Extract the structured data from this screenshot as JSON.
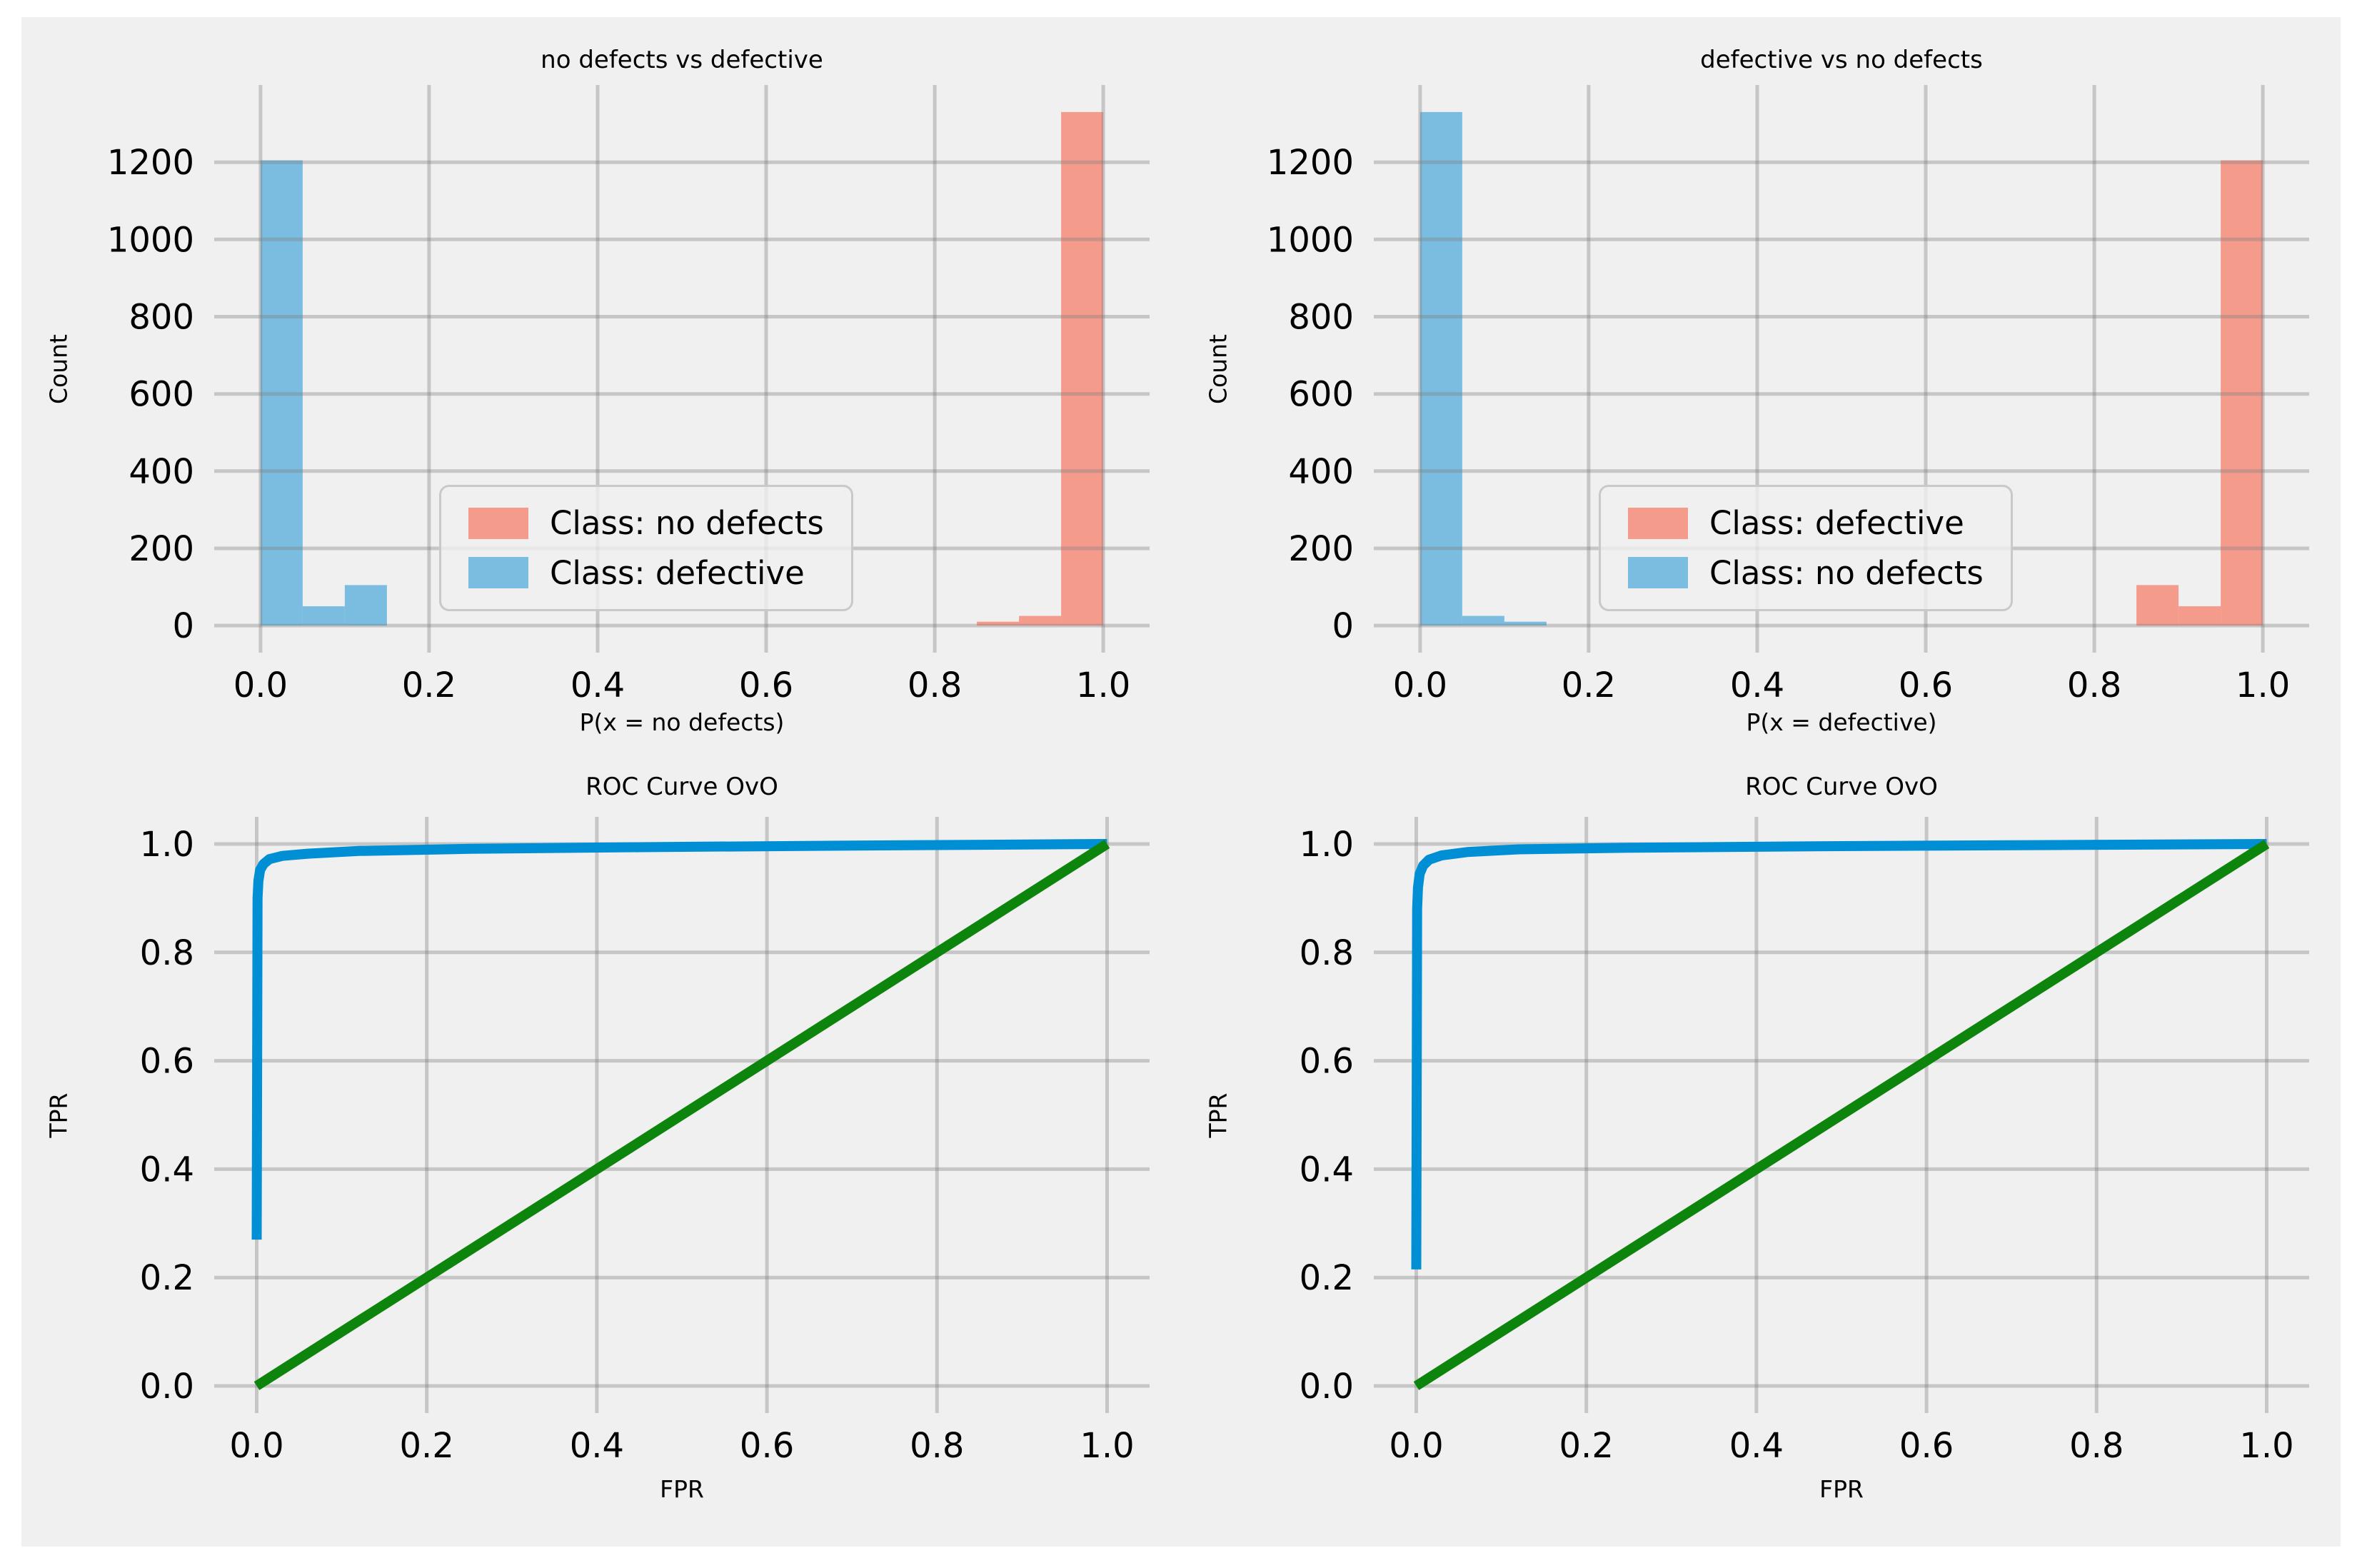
{
  "figure": {
    "background": "#ffffff",
    "panel_background": "#f0f0f0",
    "grid_color": "#cbcbcb",
    "text_color": "#000000",
    "histogram_salmon": "#f59b8c",
    "histogram_blue": "#7abde0",
    "roc_blue": "#008fd5",
    "roc_green": "#0d850d"
  },
  "chart_data": [
    {
      "type": "bar",
      "title": "no defects vs defective",
      "xlabel": "P(x = no defects)",
      "ylabel": "Count",
      "xlim": [
        -0.055,
        1.055
      ],
      "ylim": [
        -70,
        1400
      ],
      "grid": true,
      "legend_position": "lower center-left inside",
      "xticks": {
        "values": [
          0,
          0.2,
          0.4,
          0.6,
          0.8,
          1.0
        ],
        "labels": [
          "0.0",
          "0.2",
          "0.4",
          "0.6",
          "0.8",
          "1.0"
        ]
      },
      "yticks": {
        "values": [
          0,
          200,
          400,
          600,
          800,
          1000,
          1200
        ],
        "labels": [
          "0",
          "200",
          "400",
          "600",
          "800",
          "1000",
          "1200"
        ]
      },
      "bin_width": 0.05,
      "series": [
        {
          "name": "Class: no defects",
          "color": "#f59b8c",
          "bins": [
            {
              "x0": 0.85,
              "count": 10
            },
            {
              "x0": 0.9,
              "count": 25
            },
            {
              "x0": 0.95,
              "count": 1330
            }
          ]
        },
        {
          "name": "Class: defective",
          "color": "#7abde0",
          "bins": [
            {
              "x0": 0.0,
              "count": 1205
            },
            {
              "x0": 0.05,
              "count": 50
            },
            {
              "x0": 0.1,
              "count": 105
            }
          ]
        }
      ]
    },
    {
      "type": "bar",
      "title": "defective vs no defects",
      "xlabel": "P(x = defective)",
      "ylabel": "Count",
      "xlim": [
        -0.055,
        1.055
      ],
      "ylim": [
        -70,
        1400
      ],
      "grid": true,
      "legend_position": "lower center-left inside",
      "xticks": {
        "values": [
          0,
          0.2,
          0.4,
          0.6,
          0.8,
          1.0
        ],
        "labels": [
          "0.0",
          "0.2",
          "0.4",
          "0.6",
          "0.8",
          "1.0"
        ]
      },
      "yticks": {
        "values": [
          0,
          200,
          400,
          600,
          800,
          1000,
          1200
        ],
        "labels": [
          "0",
          "200",
          "400",
          "600",
          "800",
          "1000",
          "1200"
        ]
      },
      "bin_width": 0.05,
      "series": [
        {
          "name": "Class: defective",
          "color": "#f59b8c",
          "bins": [
            {
              "x0": 0.85,
              "count": 105
            },
            {
              "x0": 0.9,
              "count": 50
            },
            {
              "x0": 0.95,
              "count": 1205
            }
          ]
        },
        {
          "name": "Class: no defects",
          "color": "#7abde0",
          "bins": [
            {
              "x0": 0.0,
              "count": 1330
            },
            {
              "x0": 0.05,
              "count": 25
            },
            {
              "x0": 0.1,
              "count": 10
            }
          ]
        }
      ]
    },
    {
      "type": "line",
      "title": "ROC Curve OvO",
      "xlabel": "FPR",
      "ylabel": "TPR",
      "xlim": [
        -0.05,
        1.05
      ],
      "ylim": [
        -0.05,
        1.05
      ],
      "grid": true,
      "xticks": {
        "values": [
          0,
          0.2,
          0.4,
          0.6,
          0.8,
          1.0
        ],
        "labels": [
          "0.0",
          "0.2",
          "0.4",
          "0.6",
          "0.8",
          "1.0"
        ]
      },
      "yticks": {
        "values": [
          0,
          0.2,
          0.4,
          0.6,
          0.8,
          1.0
        ],
        "labels": [
          "0.0",
          "0.2",
          "0.4",
          "0.6",
          "0.8",
          "1.0"
        ]
      },
      "series": [
        {
          "name": "roc_curve",
          "color": "#008fd5",
          "width": 14,
          "points": [
            [
              0,
              0.27
            ],
            [
              0.001,
              0.9
            ],
            [
              0.002,
              0.932
            ],
            [
              0.004,
              0.952
            ],
            [
              0.008,
              0.963
            ],
            [
              0.015,
              0.972
            ],
            [
              0.03,
              0.978
            ],
            [
              0.06,
              0.982
            ],
            [
              0.12,
              0.987
            ],
            [
              0.25,
              0.991
            ],
            [
              0.45,
              0.994
            ],
            [
              0.7,
              0.997
            ],
            [
              1,
              1
            ]
          ]
        },
        {
          "name": "chance_diagonal",
          "color": "#0d850d",
          "width": 14,
          "points": [
            [
              0,
              0
            ],
            [
              1,
              1
            ]
          ]
        }
      ]
    },
    {
      "type": "line",
      "title": "ROC Curve OvO",
      "xlabel": "FPR",
      "ylabel": "TPR",
      "xlim": [
        -0.05,
        1.05
      ],
      "ylim": [
        -0.05,
        1.05
      ],
      "grid": true,
      "xticks": {
        "values": [
          0,
          0.2,
          0.4,
          0.6,
          0.8,
          1.0
        ],
        "labels": [
          "0.0",
          "0.2",
          "0.4",
          "0.6",
          "0.8",
          "1.0"
        ]
      },
      "yticks": {
        "values": [
          0,
          0.2,
          0.4,
          0.6,
          0.8,
          1.0
        ],
        "labels": [
          "0.0",
          "0.2",
          "0.4",
          "0.6",
          "0.8",
          "1.0"
        ]
      },
      "series": [
        {
          "name": "roc_curve",
          "color": "#008fd5",
          "width": 14,
          "points": [
            [
              0,
              0.215
            ],
            [
              0.001,
              0.88
            ],
            [
              0.002,
              0.92
            ],
            [
              0.004,
              0.945
            ],
            [
              0.008,
              0.96
            ],
            [
              0.015,
              0.971
            ],
            [
              0.03,
              0.979
            ],
            [
              0.06,
              0.985
            ],
            [
              0.12,
              0.99
            ],
            [
              0.25,
              0.993
            ],
            [
              0.5,
              0.996
            ],
            [
              0.75,
              0.998
            ],
            [
              1,
              1
            ]
          ]
        },
        {
          "name": "chance_diagonal",
          "color": "#0d850d",
          "width": 14,
          "points": [
            [
              0,
              0
            ],
            [
              1,
              1
            ]
          ]
        }
      ]
    }
  ]
}
